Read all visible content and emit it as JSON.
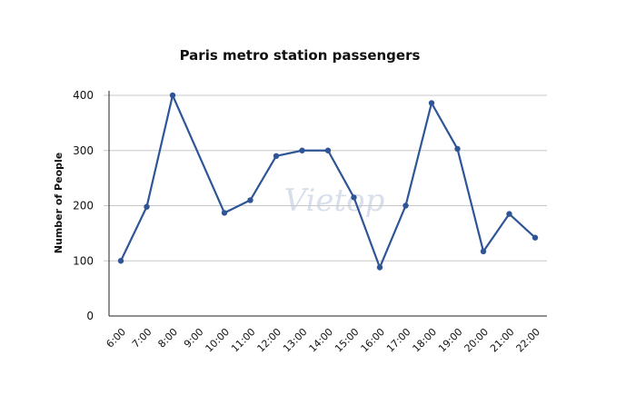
{
  "chart_data": {
    "type": "line",
    "title": "Paris metro station passengers",
    "xlabel": "",
    "ylabel": "Number of People",
    "categories": [
      "6:00",
      "7:00",
      "8:00",
      "9:00",
      "10:00",
      "11:00",
      "12:00",
      "13:00",
      "14:00",
      "15:00",
      "16:00",
      "17:00",
      "18:00",
      "19:00",
      "20:00",
      "21:00",
      "22:00"
    ],
    "x": [
      6,
      7,
      8,
      9,
      10,
      11,
      12,
      13,
      14,
      15,
      16,
      17,
      18,
      19,
      20,
      21,
      22
    ],
    "xlim": [
      6,
      22
    ],
    "series": [
      {
        "x": [
          6,
          7,
          8,
          10,
          11,
          12,
          13,
          14,
          15,
          16,
          17,
          18,
          19,
          20,
          21,
          22
        ],
        "values": [
          100,
          198,
          400,
          187,
          210,
          290,
          300,
          300,
          215,
          88,
          200,
          386,
          303,
          117,
          185,
          142
        ]
      }
    ],
    "ylim": [
      0,
      400
    ],
    "yticks": [
      0,
      100,
      200,
      300,
      400
    ],
    "grid": true,
    "legend": "none",
    "color": "#2e5596",
    "watermark": "Vietop"
  }
}
